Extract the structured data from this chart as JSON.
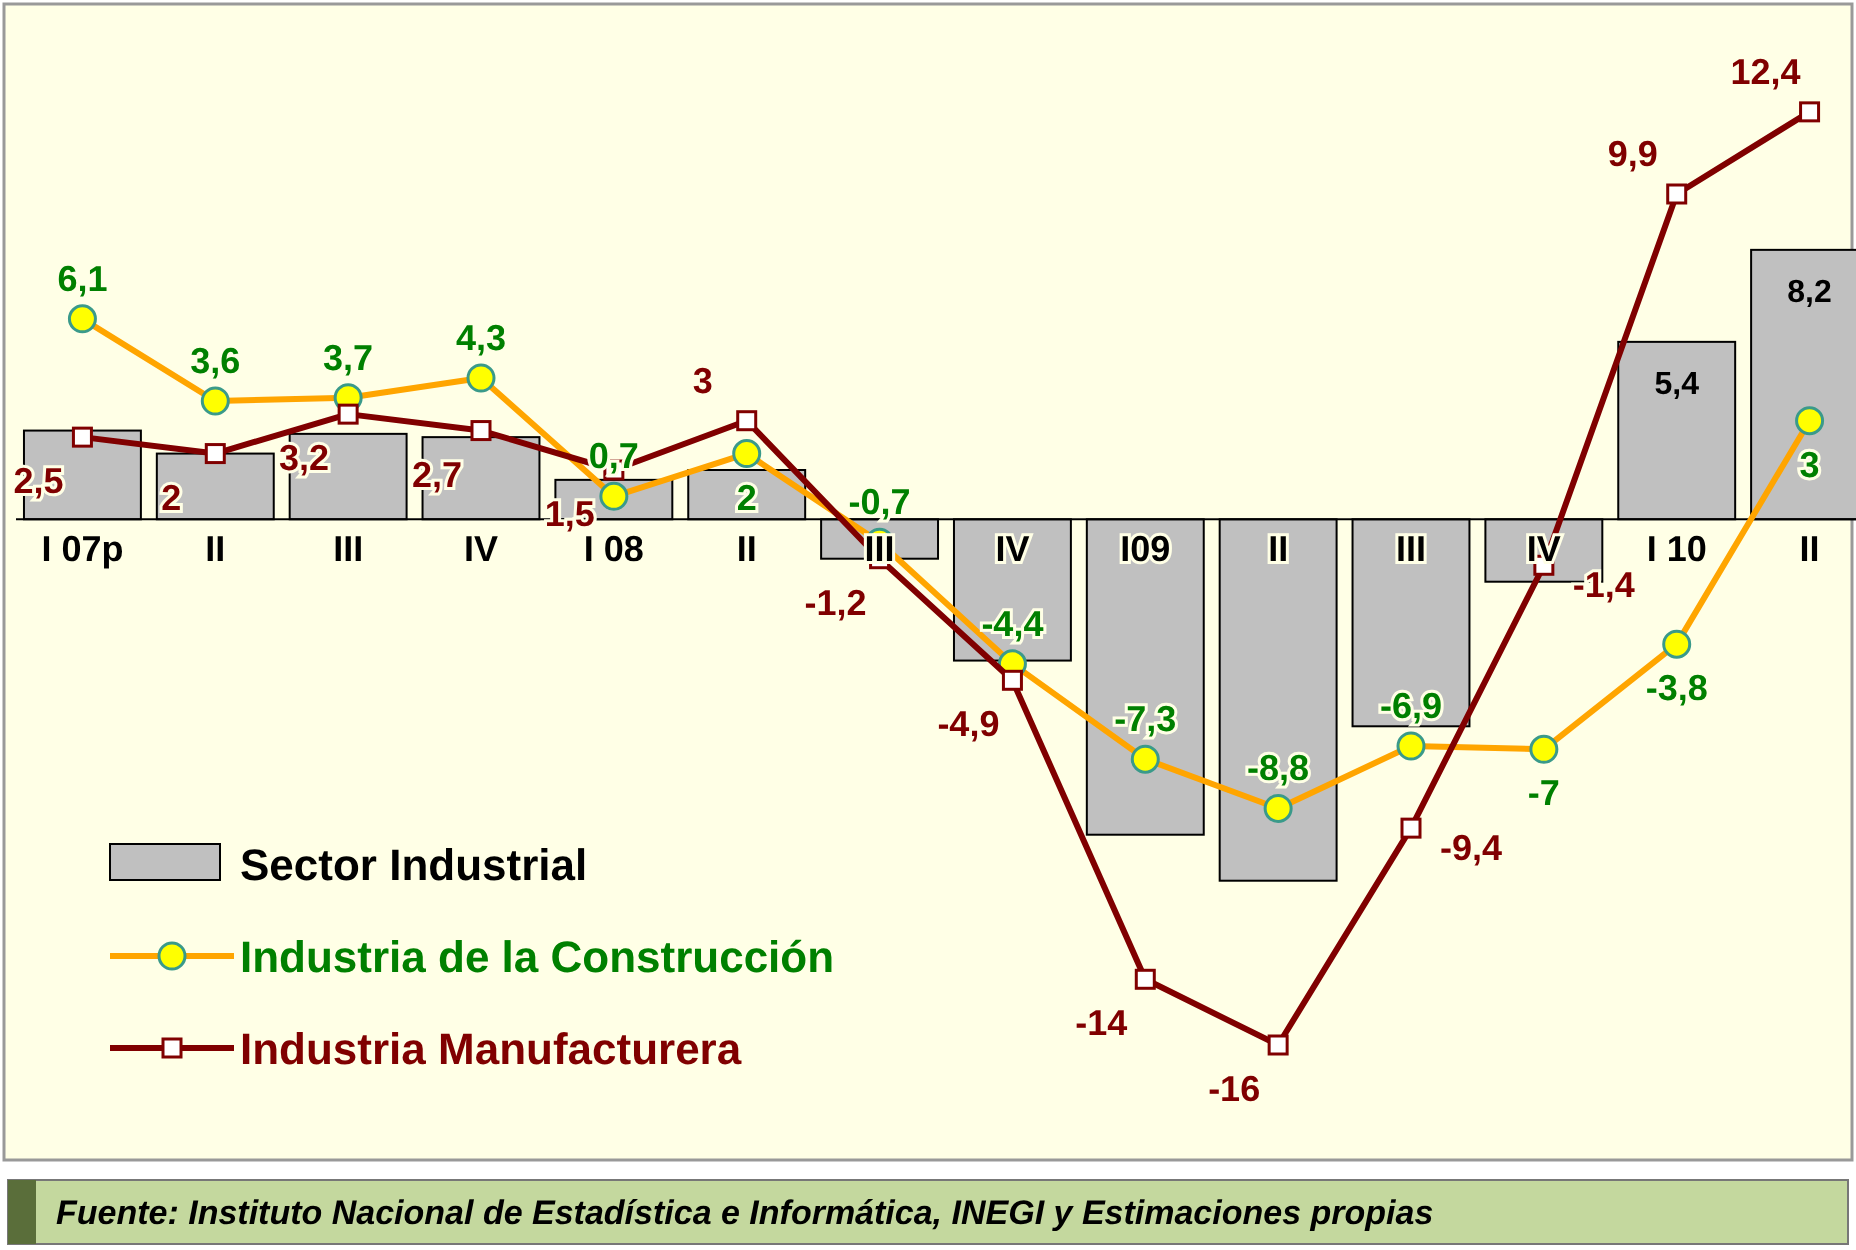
{
  "chart_data": {
    "type": "bar",
    "categories": [
      "I 07p",
      "II",
      "III",
      "IV",
      "I 08",
      "II",
      "III",
      "IV",
      "I09",
      "II",
      "III",
      "IV",
      "I 10",
      "II"
    ],
    "ylim": [
      -19.5,
      15.5
    ],
    "tick_labels": "x",
    "legend": "bottom left",
    "grid": false,
    "series": [
      {
        "name": "Sector Industrial",
        "color": "#c0c0c0",
        "values": [
          2.7,
          2.0,
          2.6,
          2.5,
          1.2,
          1.5,
          -1.2,
          -4.3,
          -9.6,
          -11.0,
          -6.3,
          -1.9,
          5.4,
          8.2
        ],
        "value_labels": [
          null,
          null,
          null,
          null,
          null,
          null,
          null,
          null,
          null,
          null,
          null,
          null,
          "5,4",
          "8,2"
        ]
      },
      {
        "type": "line",
        "name": "Industria de la Construcción",
        "color": "#ffa500",
        "marker": "circle",
        "values": [
          6.1,
          3.6,
          3.7,
          4.3,
          0.7,
          2,
          -0.7,
          -4.4,
          -7.3,
          -8.8,
          -6.9,
          -7,
          -3.8,
          3
        ],
        "value_labels": [
          "6,1",
          "3,6",
          "3,7",
          "4,3",
          "0,7",
          "2",
          "-0,7",
          "-4,4",
          "-7,3",
          "-8,8",
          "-6,9",
          "-7",
          "-3,8",
          "3"
        ]
      },
      {
        "type": "line",
        "name": "Industria Manufacturera",
        "color": "#800000",
        "marker": "square",
        "values": [
          2.5,
          2,
          3.2,
          2.7,
          1.5,
          3,
          -1.2,
          -4.9,
          -14,
          -16,
          -9.4,
          -1.4,
          9.9,
          12.4
        ],
        "value_labels": [
          "2,5",
          "2",
          "3,2",
          "2,7",
          "1,5",
          "3",
          "-1,2",
          "-4,9",
          "-14",
          "-16",
          "-9,4",
          "-1,4",
          "9,9",
          "12,4"
        ]
      }
    ],
    "annotations": [
      "Fuente: Instituto Nacional de Estadística e Informática, INEGI  y Estimaciones  propias"
    ]
  }
}
